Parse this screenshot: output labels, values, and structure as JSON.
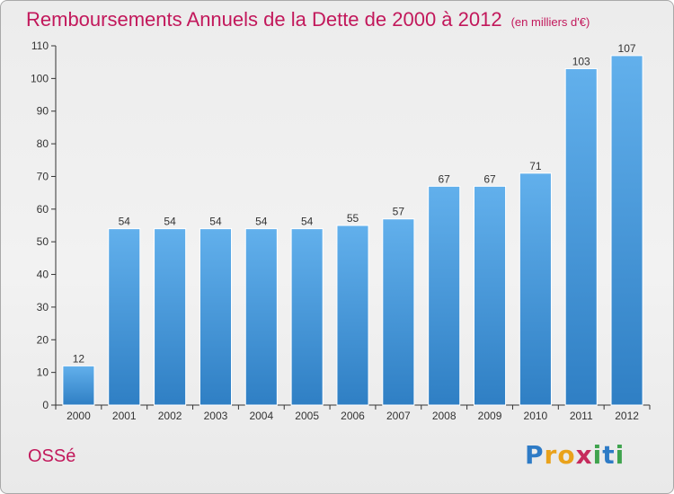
{
  "chart_data": {
    "type": "bar",
    "title": "Remboursements Annuels de la Dette de 2000 à 2012",
    "subtitle": "(en milliers d'€)",
    "categories": [
      "2000",
      "2001",
      "2002",
      "2003",
      "2004",
      "2005",
      "2006",
      "2007",
      "2008",
      "2009",
      "2010",
      "2011",
      "2012"
    ],
    "values": [
      12,
      54,
      54,
      54,
      54,
      54,
      55,
      57,
      67,
      67,
      71,
      103,
      107
    ],
    "ylim": [
      0,
      110
    ],
    "yticks": [
      0,
      10,
      20,
      30,
      40,
      50,
      60,
      70,
      80,
      90,
      100,
      110
    ],
    "grid": false,
    "data_labels": true,
    "bar_color": "#3c8fd6",
    "bar_color_light": "#62b0ec",
    "bar_color_dark": "#2f7fc4"
  },
  "footer": {
    "commune": "OSSé",
    "brand": {
      "letters": [
        "P",
        "r",
        "o",
        "x",
        "i",
        "t",
        "i"
      ],
      "colors": [
        "#2e7bc6",
        "#e9a21b",
        "#e9a21b",
        "#c62b5c",
        "#3fa34d",
        "#2e7bc6",
        "#3fa34d"
      ]
    }
  },
  "colors": {
    "title": "#c2185b",
    "axis": "#333333"
  }
}
